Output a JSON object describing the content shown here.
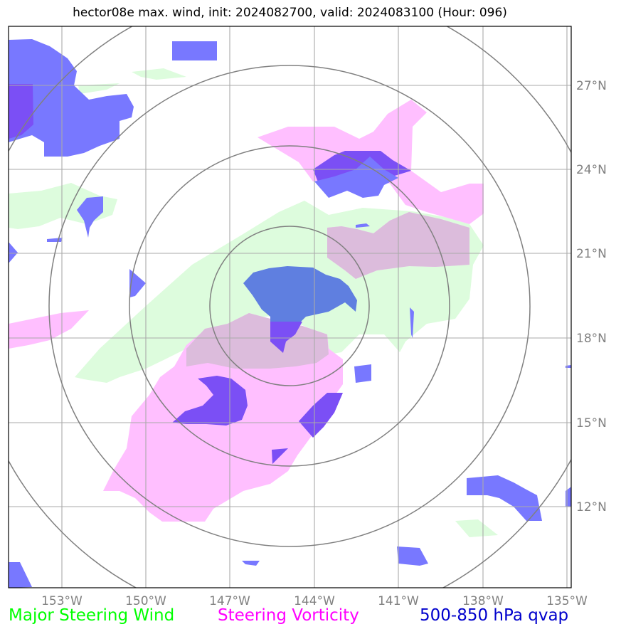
{
  "title": "hector08e max. wind, init: 2024082700, valid: 2024083100 (Hour: 096)",
  "map": {
    "lon_ticks": [
      "153°W",
      "150°W",
      "147°W",
      "144°W",
      "141°W",
      "138°W",
      "135°W"
    ],
    "lat_ticks": [
      "27°N",
      "24°N",
      "21°N",
      "18°N",
      "15°N",
      "12°N"
    ],
    "lon_range": [
      "155°W",
      "135°W"
    ],
    "lat_range": [
      "9.5°N",
      "29.5°N"
    ],
    "storm_center": {
      "lon": "145°W",
      "lat": "19.1°N"
    },
    "range_rings": 4,
    "grid": true
  },
  "layers": [
    {
      "name": "Major Steering Wind",
      "color": "#00ff00",
      "fill": "#ddfcdd"
    },
    {
      "name": "Steering Vorticity",
      "color": "#ff00ff",
      "fill": "#ffbfff"
    },
    {
      "name": "500-850 hPa qvap",
      "color": "#0000cc",
      "fill": "#7878ff"
    }
  ]
}
